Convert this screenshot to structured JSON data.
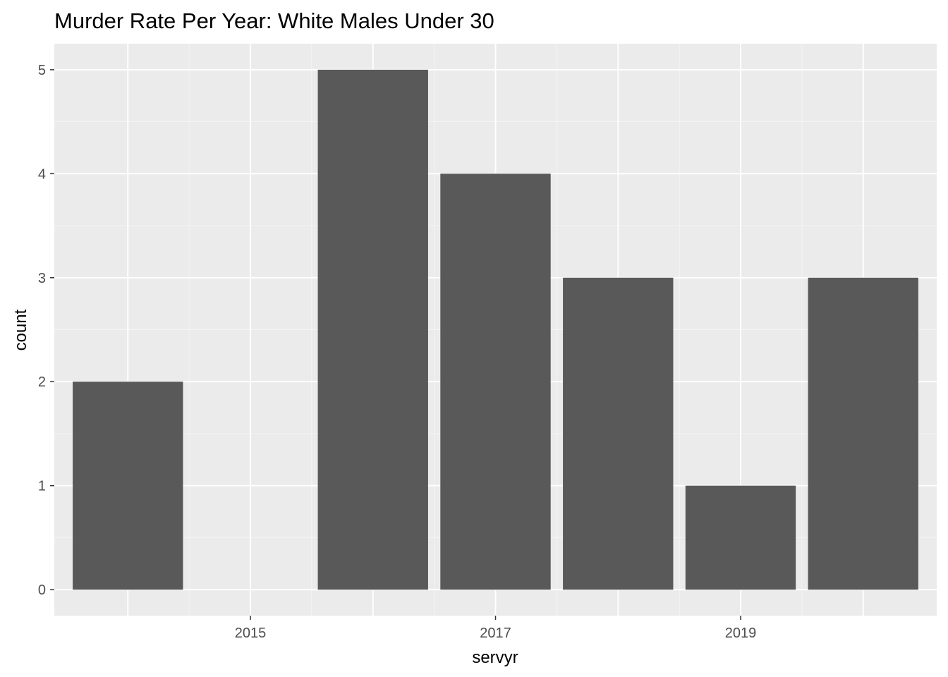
{
  "chart_data": {
    "type": "bar",
    "title": "Murder Rate Per Year: White Males Under 30",
    "xlabel": "servyr",
    "ylabel": "count",
    "x": [
      2014,
      2015,
      2016,
      2017,
      2018,
      2019,
      2020
    ],
    "values": [
      2,
      0,
      5,
      4,
      3,
      1,
      3
    ],
    "xlim": [
      2013.4,
      2020.6
    ],
    "ylim": [
      -0.25,
      5.25
    ],
    "x_ticks": [
      2015,
      2017,
      2019
    ],
    "x_tick_labels": [
      "2015",
      "2017",
      "2019"
    ],
    "y_ticks": [
      0,
      1,
      2,
      3,
      4,
      5
    ],
    "y_tick_labels": [
      "0",
      "1",
      "2",
      "3",
      "4",
      "5"
    ],
    "grid": true,
    "bar_width": 0.9,
    "colors": {
      "bar": "#595959",
      "panel": "#ebebeb",
      "grid_major": "#ffffff",
      "grid_minor": "#f5f5f5",
      "tick_text": "#4d4d4d",
      "tick_mark": "#333333"
    }
  }
}
